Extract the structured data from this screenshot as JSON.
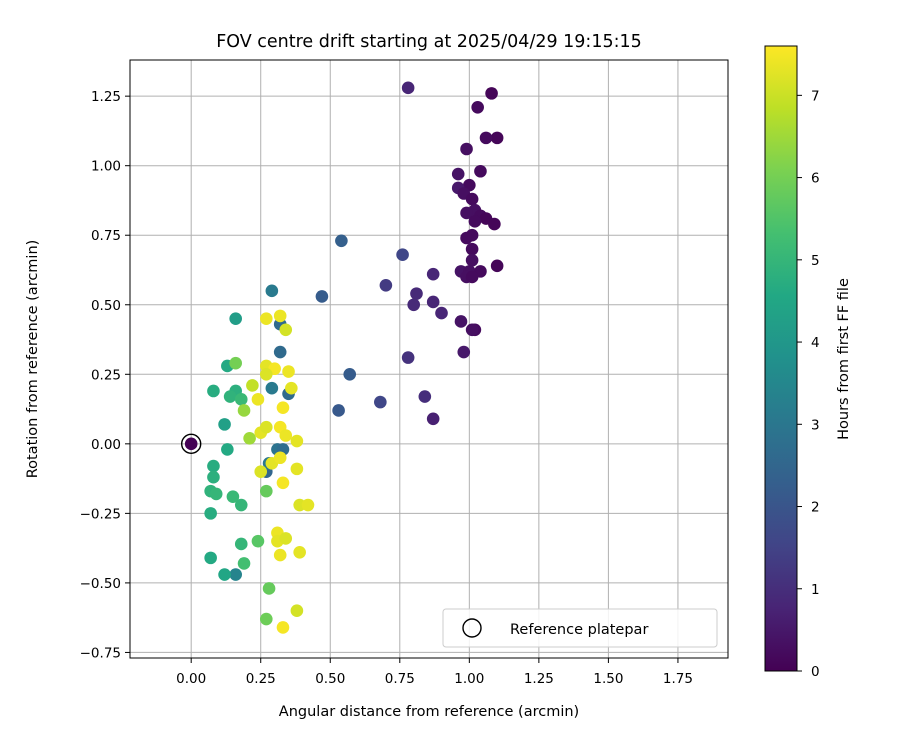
{
  "chart_data": {
    "type": "scatter",
    "title": "FOV centre drift starting at 2025/04/29 19:15:15",
    "xlabel": "Angular distance from reference (arcmin)",
    "ylabel": "Rotation from reference (arcmin)",
    "xlim": [
      -0.22,
      1.93
    ],
    "ylim": [
      -0.77,
      1.38
    ],
    "xticks": [
      0.0,
      0.25,
      0.5,
      0.75,
      1.0,
      1.25,
      1.5,
      1.75
    ],
    "xtick_labels": [
      "0.00",
      "0.25",
      "0.50",
      "0.75",
      "1.00",
      "1.25",
      "1.50",
      "1.75"
    ],
    "yticks": [
      -0.75,
      -0.5,
      -0.25,
      0.0,
      0.25,
      0.5,
      0.75,
      1.0,
      1.25
    ],
    "ytick_labels": [
      "−0.75",
      "−0.50",
      "−0.25",
      "0.00",
      "0.25",
      "0.50",
      "0.75",
      "1.00",
      "1.25"
    ],
    "grid": true,
    "colormap": "viridis",
    "colorbar": {
      "label": "Hours from first FF file",
      "range": [
        0,
        7.6
      ],
      "ticks": [
        0,
        1,
        2,
        3,
        4,
        5,
        6,
        7
      ],
      "tick_labels": [
        "0",
        "1",
        "2",
        "3",
        "4",
        "5",
        "6",
        "7"
      ]
    },
    "legend": {
      "placement": "lower right",
      "entries": [
        {
          "label": "Reference platepar",
          "marker": "open-circle"
        }
      ]
    },
    "reference_point": {
      "x": 0.0,
      "y": 0.0
    },
    "series": [
      {
        "points": [
          {
            "x": 1.08,
            "y": 1.26,
            "c": 0.1
          },
          {
            "x": 1.03,
            "y": 1.21,
            "c": 0.2
          },
          {
            "x": 1.1,
            "y": 1.1,
            "c": 0.1
          },
          {
            "x": 1.06,
            "y": 1.1,
            "c": 0.2
          },
          {
            "x": 0.99,
            "y": 1.06,
            "c": 0.3
          },
          {
            "x": 1.04,
            "y": 0.98,
            "c": 0.2
          },
          {
            "x": 0.96,
            "y": 0.97,
            "c": 0.4
          },
          {
            "x": 1.0,
            "y": 0.93,
            "c": 0.2
          },
          {
            "x": 0.96,
            "y": 0.92,
            "c": 0.5
          },
          {
            "x": 0.98,
            "y": 0.9,
            "c": 0.3
          },
          {
            "x": 1.01,
            "y": 0.88,
            "c": 0.2
          },
          {
            "x": 1.02,
            "y": 0.84,
            "c": 0.3
          },
          {
            "x": 0.99,
            "y": 0.83,
            "c": 0.3
          },
          {
            "x": 1.04,
            "y": 0.82,
            "c": 0.2
          },
          {
            "x": 1.06,
            "y": 0.81,
            "c": 0.1
          },
          {
            "x": 1.02,
            "y": 0.8,
            "c": 0.2
          },
          {
            "x": 1.09,
            "y": 0.79,
            "c": 0.1
          },
          {
            "x": 1.01,
            "y": 0.75,
            "c": 0.2
          },
          {
            "x": 0.99,
            "y": 0.74,
            "c": 0.2
          },
          {
            "x": 1.01,
            "y": 0.7,
            "c": 0.2
          },
          {
            "x": 1.01,
            "y": 0.66,
            "c": 0.3
          },
          {
            "x": 1.1,
            "y": 0.64,
            "c": 0.1
          },
          {
            "x": 0.97,
            "y": 0.62,
            "c": 0.4
          },
          {
            "x": 1.0,
            "y": 0.62,
            "c": 0.3
          },
          {
            "x": 1.04,
            "y": 0.62,
            "c": 0.2
          },
          {
            "x": 0.99,
            "y": 0.6,
            "c": 0.3
          },
          {
            "x": 1.01,
            "y": 0.6,
            "c": 0.2
          },
          {
            "x": 1.02,
            "y": 0.41,
            "c": 0.2
          },
          {
            "x": 1.01,
            "y": 0.41,
            "c": 0.3
          },
          {
            "x": 0.97,
            "y": 0.44,
            "c": 0.4
          },
          {
            "x": 0.98,
            "y": 0.33,
            "c": 0.5
          },
          {
            "x": 0.87,
            "y": 0.61,
            "c": 0.8
          },
          {
            "x": 0.81,
            "y": 0.54,
            "c": 0.9
          },
          {
            "x": 0.87,
            "y": 0.51,
            "c": 0.8
          },
          {
            "x": 0.8,
            "y": 0.5,
            "c": 0.9
          },
          {
            "x": 0.9,
            "y": 0.47,
            "c": 0.8
          },
          {
            "x": 0.78,
            "y": 1.28,
            "c": 0.8
          },
          {
            "x": 0.78,
            "y": 0.31,
            "c": 1.1
          },
          {
            "x": 0.84,
            "y": 0.17,
            "c": 1.0
          },
          {
            "x": 0.87,
            "y": 0.09,
            "c": 0.7
          },
          {
            "x": 0.7,
            "y": 0.57,
            "c": 1.3
          },
          {
            "x": 0.76,
            "y": 0.68,
            "c": 1.6
          },
          {
            "x": 0.68,
            "y": 0.15,
            "c": 1.6
          },
          {
            "x": 0.54,
            "y": 0.73,
            "c": 2.3
          },
          {
            "x": 0.47,
            "y": 0.53,
            "c": 2.2
          },
          {
            "x": 0.57,
            "y": 0.25,
            "c": 2.2
          },
          {
            "x": 0.53,
            "y": 0.12,
            "c": 2.1
          },
          {
            "x": 0.29,
            "y": 0.55,
            "c": 3.1
          },
          {
            "x": 0.32,
            "y": 0.43,
            "c": 2.6
          },
          {
            "x": 0.32,
            "y": 0.33,
            "c": 2.6
          },
          {
            "x": 0.35,
            "y": 0.18,
            "c": 2.6
          },
          {
            "x": 0.29,
            "y": 0.2,
            "c": 3.1
          },
          {
            "x": 0.31,
            "y": -0.02,
            "c": 2.9
          },
          {
            "x": 0.27,
            "y": -0.1,
            "c": 2.5
          },
          {
            "x": 0.28,
            "y": -0.07,
            "c": 3.0
          },
          {
            "x": 0.33,
            "y": -0.02,
            "c": 2.7
          },
          {
            "x": 0.16,
            "y": -0.47,
            "c": 3.4
          },
          {
            "x": 0.16,
            "y": 0.45,
            "c": 4.2
          },
          {
            "x": 0.13,
            "y": 0.28,
            "c": 4.6
          },
          {
            "x": 0.08,
            "y": 0.19,
            "c": 4.7
          },
          {
            "x": 0.16,
            "y": 0.19,
            "c": 4.8
          },
          {
            "x": 0.14,
            "y": 0.17,
            "c": 4.9
          },
          {
            "x": 0.18,
            "y": 0.16,
            "c": 5.1
          },
          {
            "x": 0.12,
            "y": 0.07,
            "c": 4.3
          },
          {
            "x": 0.13,
            "y": -0.02,
            "c": 4.6
          },
          {
            "x": 0.08,
            "y": -0.08,
            "c": 4.7
          },
          {
            "x": 0.08,
            "y": -0.12,
            "c": 4.8
          },
          {
            "x": 0.07,
            "y": -0.17,
            "c": 4.9
          },
          {
            "x": 0.09,
            "y": -0.18,
            "c": 5.0
          },
          {
            "x": 0.15,
            "y": -0.19,
            "c": 5.1
          },
          {
            "x": 0.18,
            "y": -0.22,
            "c": 5.0
          },
          {
            "x": 0.07,
            "y": -0.25,
            "c": 4.7
          },
          {
            "x": 0.07,
            "y": -0.41,
            "c": 4.6
          },
          {
            "x": 0.12,
            "y": -0.47,
            "c": 4.5
          },
          {
            "x": 0.18,
            "y": -0.36,
            "c": 5.0
          },
          {
            "x": 0.19,
            "y": -0.43,
            "c": 5.3
          },
          {
            "x": 0.24,
            "y": -0.35,
            "c": 5.6
          },
          {
            "x": 0.27,
            "y": -0.17,
            "c": 5.8
          },
          {
            "x": 0.28,
            "y": -0.52,
            "c": 5.8
          },
          {
            "x": 0.27,
            "y": -0.63,
            "c": 5.9
          },
          {
            "x": 0.16,
            "y": 0.29,
            "c": 6.0
          },
          {
            "x": 0.19,
            "y": 0.12,
            "c": 6.4
          },
          {
            "x": 0.21,
            "y": 0.02,
            "c": 6.5
          },
          {
            "x": 0.22,
            "y": 0.21,
            "c": 6.9
          },
          {
            "x": 0.34,
            "y": 0.41,
            "c": 7.1
          },
          {
            "x": 0.27,
            "y": 0.45,
            "c": 7.4
          },
          {
            "x": 0.32,
            "y": 0.46,
            "c": 7.4
          },
          {
            "x": 0.27,
            "y": 0.28,
            "c": 7.3
          },
          {
            "x": 0.3,
            "y": 0.27,
            "c": 7.5
          },
          {
            "x": 0.27,
            "y": 0.25,
            "c": 7.2
          },
          {
            "x": 0.35,
            "y": 0.26,
            "c": 7.4
          },
          {
            "x": 0.36,
            "y": 0.2,
            "c": 7.3
          },
          {
            "x": 0.24,
            "y": 0.16,
            "c": 7.4
          },
          {
            "x": 0.33,
            "y": 0.13,
            "c": 7.5
          },
          {
            "x": 0.25,
            "y": 0.04,
            "c": 7.3
          },
          {
            "x": 0.27,
            "y": 0.06,
            "c": 7.2
          },
          {
            "x": 0.32,
            "y": 0.06,
            "c": 7.5
          },
          {
            "x": 0.34,
            "y": 0.03,
            "c": 7.4
          },
          {
            "x": 0.38,
            "y": 0.01,
            "c": 7.3
          },
          {
            "x": 0.25,
            "y": -0.1,
            "c": 7.2
          },
          {
            "x": 0.29,
            "y": -0.07,
            "c": 7.3
          },
          {
            "x": 0.32,
            "y": -0.05,
            "c": 7.4
          },
          {
            "x": 0.33,
            "y": -0.14,
            "c": 7.5
          },
          {
            "x": 0.38,
            "y": -0.09,
            "c": 7.3
          },
          {
            "x": 0.39,
            "y": -0.22,
            "c": 7.2
          },
          {
            "x": 0.42,
            "y": -0.22,
            "c": 7.3
          },
          {
            "x": 0.31,
            "y": -0.32,
            "c": 7.4
          },
          {
            "x": 0.31,
            "y": -0.35,
            "c": 7.3
          },
          {
            "x": 0.34,
            "y": -0.34,
            "c": 7.2
          },
          {
            "x": 0.32,
            "y": -0.4,
            "c": 7.4
          },
          {
            "x": 0.39,
            "y": -0.39,
            "c": 7.3
          },
          {
            "x": 0.38,
            "y": -0.6,
            "c": 7.1
          },
          {
            "x": 0.33,
            "y": -0.66,
            "c": 7.5
          }
        ]
      }
    ]
  }
}
